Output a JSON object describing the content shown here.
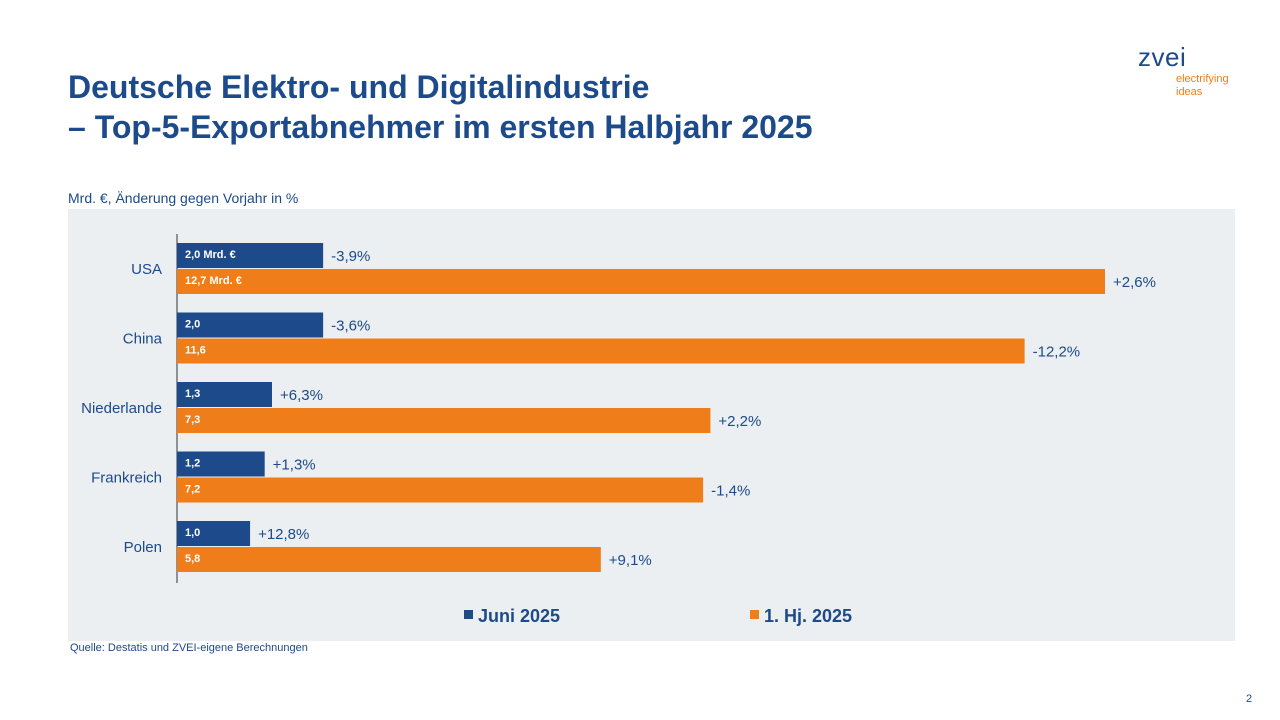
{
  "header": {
    "title": "Deutsche Elektro- und Digitalindustrie",
    "subtitle": "– Top-5-Exportabnehmer im ersten Halbjahr 2025"
  },
  "logo": {
    "word": "zvei",
    "tagline_1": "electrifying",
    "tagline_2": "ideas"
  },
  "unit_note": "Mrd. €, Änderung gegen Vorjahr in %",
  "source": "Quelle: Destatis und ZVEI-eigene Berechnungen",
  "page_number": "2",
  "colors": {
    "brand_blue": "#1c4a8a",
    "accent_orange": "#ef7d1a",
    "plot_background": "#eceff1"
  },
  "chart_data": {
    "type": "bar",
    "orientation": "horizontal",
    "categories": [
      "USA",
      "China",
      "Niederlande",
      "Frankreich",
      "Polen"
    ],
    "series": [
      {
        "name": "Juni 2025",
        "color": "#1c4a8a",
        "values": [
          2.0,
          2.0,
          1.3,
          1.2,
          1.0
        ],
        "value_labels": [
          "2,0 Mrd. €",
          "2,0",
          "1,3",
          "1,2",
          "1,0"
        ],
        "change_labels": [
          "-3,9%",
          "-3,6%",
          "+6,3%",
          "+1,3%",
          "+12,8%"
        ]
      },
      {
        "name": "1. Hj. 2025",
        "color": "#ef7d1a",
        "values": [
          12.7,
          11.6,
          7.3,
          7.2,
          5.8
        ],
        "value_labels": [
          "12,7 Mrd. €",
          "11,6",
          "7,3",
          "7,2",
          "5,8"
        ],
        "change_labels": [
          "+2,6%",
          "-12,2%",
          "+2,2%",
          "-1,4%",
          "+9,1%"
        ]
      }
    ],
    "xlim": [
      0,
      12.7
    ],
    "grid": false,
    "legend_position": "bottom"
  }
}
